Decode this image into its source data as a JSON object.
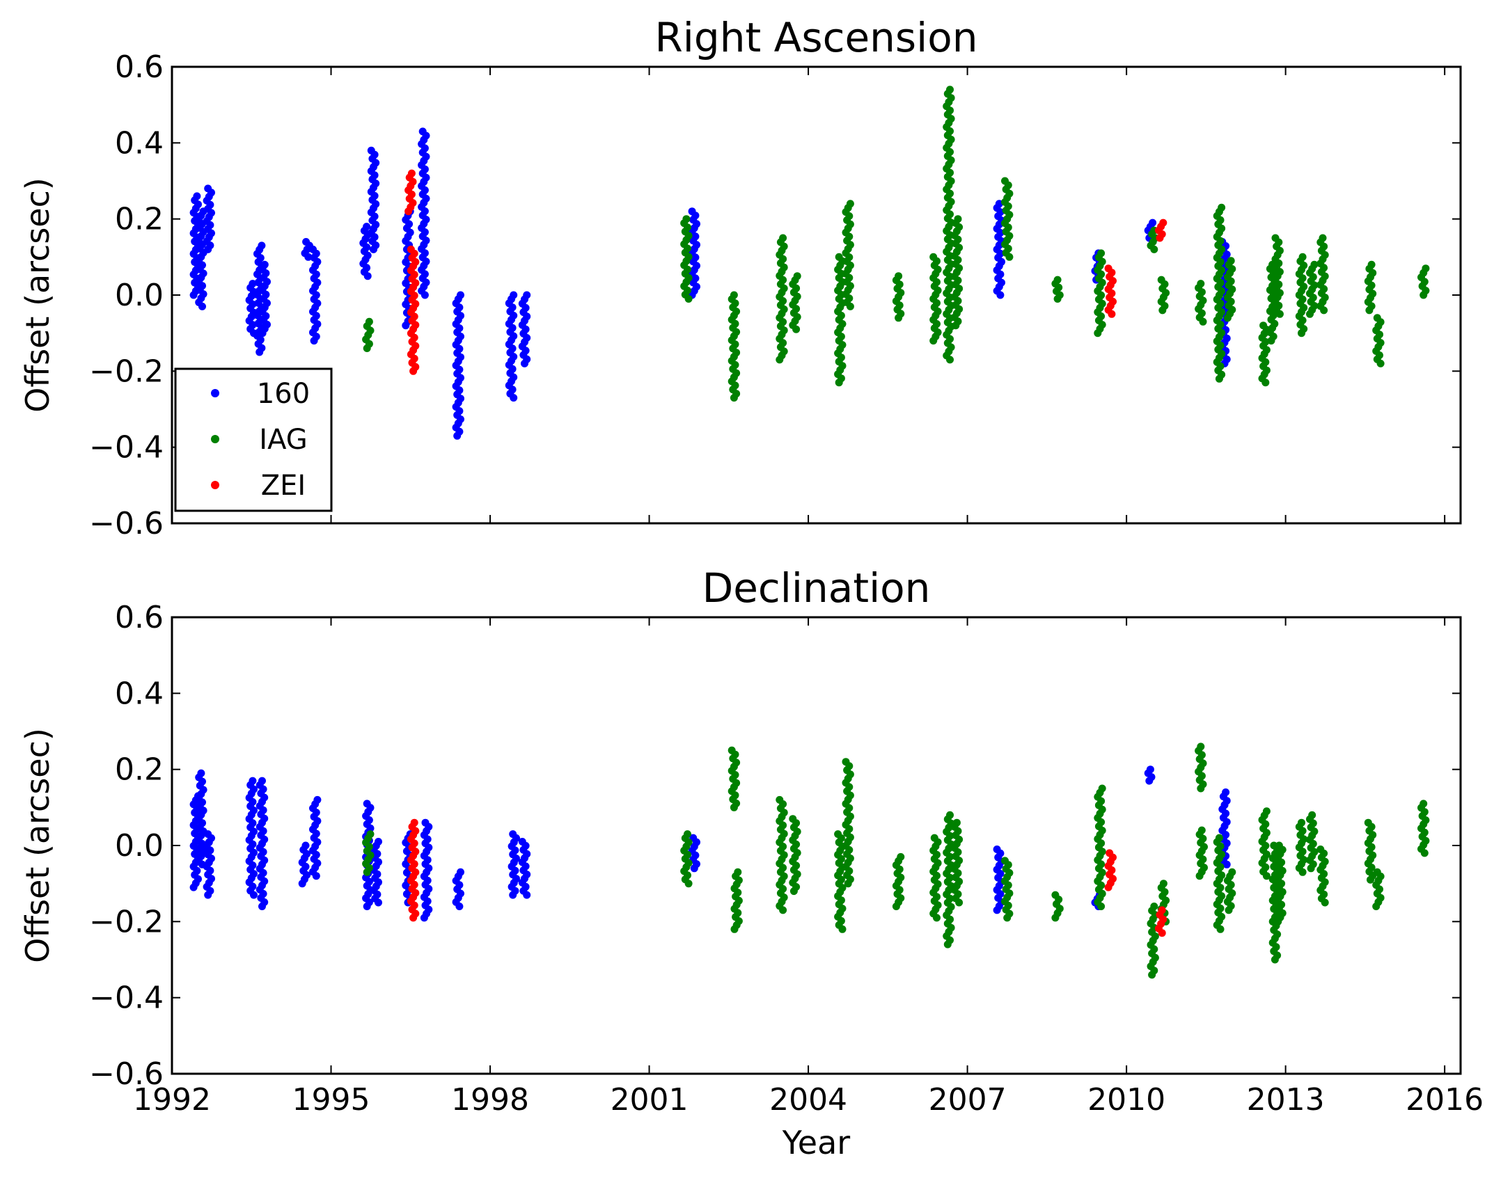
{
  "chart_data": [
    {
      "type": "scatter",
      "title": "Right Ascension",
      "xlabel": "",
      "ylabel": "Offset (arcsec)",
      "xlim": [
        1992.0,
        2016.3
      ],
      "ylim": [
        -0.6,
        0.6
      ],
      "xticks": [
        1992,
        1995,
        1998,
        2001,
        2004,
        2007,
        2010,
        2013,
        2016
      ],
      "yticks": [
        0.6,
        0.4,
        0.2,
        0.0,
        -0.2,
        -0.4,
        -0.6
      ],
      "show_xtick_labels": false,
      "legend": {
        "position": "lower-left",
        "entries": [
          "160",
          "IAG",
          "ZEI"
        ]
      },
      "series": [
        {
          "name": "160",
          "color": "#0000ff",
          "clusters": [
            {
              "x": 1992.45,
              "ymin": 0.0,
              "ymax": 0.26
            },
            {
              "x": 1992.55,
              "ymin": -0.03,
              "ymax": 0.22
            },
            {
              "x": 1992.7,
              "ymin": 0.12,
              "ymax": 0.28
            },
            {
              "x": 1993.5,
              "ymin": -0.1,
              "ymax": 0.03
            },
            {
              "x": 1993.65,
              "ymin": -0.15,
              "ymax": 0.13
            },
            {
              "x": 1993.75,
              "ymin": -0.1,
              "ymax": 0.08
            },
            {
              "x": 1994.55,
              "ymin": 0.1,
              "ymax": 0.14
            },
            {
              "x": 1994.7,
              "ymin": -0.12,
              "ymax": 0.12
            },
            {
              "x": 1995.65,
              "ymin": 0.05,
              "ymax": 0.18
            },
            {
              "x": 1995.8,
              "ymin": 0.12,
              "ymax": 0.38
            },
            {
              "x": 1996.45,
              "ymin": -0.08,
              "ymax": 0.22
            },
            {
              "x": 1996.75,
              "ymin": 0.0,
              "ymax": 0.43
            },
            {
              "x": 1997.4,
              "ymin": -0.37,
              "ymax": 0.0
            },
            {
              "x": 1998.4,
              "ymin": -0.27,
              "ymax": 0.0
            },
            {
              "x": 1998.65,
              "ymin": -0.18,
              "ymax": 0.0
            },
            {
              "x": 2001.85,
              "ymin": 0.0,
              "ymax": 0.22
            },
            {
              "x": 2007.6,
              "ymin": 0.0,
              "ymax": 0.24
            },
            {
              "x": 2009.45,
              "ymin": 0.04,
              "ymax": 0.11
            },
            {
              "x": 2010.45,
              "ymin": 0.14,
              "ymax": 0.19
            },
            {
              "x": 2011.85,
              "ymin": -0.18,
              "ymax": 0.14
            }
          ]
        },
        {
          "name": "IAG",
          "color": "#008000",
          "clusters": [
            {
              "x": 1995.7,
              "ymin": -0.14,
              "ymax": -0.07
            },
            {
              "x": 2001.7,
              "ymin": -0.01,
              "ymax": 0.2
            },
            {
              "x": 2002.6,
              "ymin": -0.27,
              "ymax": 0.0
            },
            {
              "x": 2003.5,
              "ymin": -0.17,
              "ymax": 0.15
            },
            {
              "x": 2003.75,
              "ymin": -0.09,
              "ymax": 0.05
            },
            {
              "x": 2004.6,
              "ymin": -0.23,
              "ymax": 0.1
            },
            {
              "x": 2004.75,
              "ymin": -0.03,
              "ymax": 0.24
            },
            {
              "x": 2005.7,
              "ymin": -0.06,
              "ymax": 0.05
            },
            {
              "x": 2006.4,
              "ymin": -0.12,
              "ymax": 0.1
            },
            {
              "x": 2006.65,
              "ymin": -0.17,
              "ymax": 0.54
            },
            {
              "x": 2006.8,
              "ymin": -0.08,
              "ymax": 0.2
            },
            {
              "x": 2007.75,
              "ymin": 0.1,
              "ymax": 0.3
            },
            {
              "x": 2008.7,
              "ymin": -0.01,
              "ymax": 0.04
            },
            {
              "x": 2009.5,
              "ymin": -0.1,
              "ymax": 0.11
            },
            {
              "x": 2010.5,
              "ymin": 0.12,
              "ymax": 0.17
            },
            {
              "x": 2010.7,
              "ymin": -0.04,
              "ymax": 0.04
            },
            {
              "x": 2011.4,
              "ymin": -0.07,
              "ymax": 0.03
            },
            {
              "x": 2011.75,
              "ymin": -0.22,
              "ymax": 0.23
            },
            {
              "x": 2011.95,
              "ymin": -0.06,
              "ymax": 0.09
            },
            {
              "x": 2012.6,
              "ymin": -0.23,
              "ymax": -0.08
            },
            {
              "x": 2012.75,
              "ymin": -0.12,
              "ymax": 0.08
            },
            {
              "x": 2012.85,
              "ymin": -0.05,
              "ymax": 0.15
            },
            {
              "x": 2013.3,
              "ymin": -0.1,
              "ymax": 0.1
            },
            {
              "x": 2013.5,
              "ymin": -0.05,
              "ymax": 0.08
            },
            {
              "x": 2013.7,
              "ymin": -0.04,
              "ymax": 0.15
            },
            {
              "x": 2014.6,
              "ymin": -0.04,
              "ymax": 0.08
            },
            {
              "x": 2014.75,
              "ymin": -0.18,
              "ymax": -0.06
            },
            {
              "x": 2015.6,
              "ymin": 0.0,
              "ymax": 0.07
            }
          ]
        },
        {
          "name": "ZEI",
          "color": "#ff0000",
          "clusters": [
            {
              "x": 1996.55,
              "ymin": -0.2,
              "ymax": 0.12
            },
            {
              "x": 1996.5,
              "ymin": 0.22,
              "ymax": 0.32
            },
            {
              "x": 2009.7,
              "ymin": -0.05,
              "ymax": 0.07
            },
            {
              "x": 2010.65,
              "ymin": 0.15,
              "ymax": 0.19
            }
          ]
        }
      ]
    },
    {
      "type": "scatter",
      "title": "Declination",
      "xlabel": "Year",
      "ylabel": "Offset (arcsec)",
      "xlim": [
        1992.0,
        2016.3
      ],
      "ylim": [
        -0.6,
        0.6
      ],
      "xticks": [
        1992,
        1995,
        1998,
        2001,
        2004,
        2007,
        2010,
        2013,
        2016
      ],
      "yticks": [
        0.6,
        0.4,
        0.2,
        0.0,
        -0.2,
        -0.4,
        -0.6
      ],
      "show_xtick_labels": true,
      "series": [
        {
          "name": "160",
          "color": "#0000ff",
          "clusters": [
            {
              "x": 1992.45,
              "ymin": -0.11,
              "ymax": 0.13
            },
            {
              "x": 1992.55,
              "ymin": -0.05,
              "ymax": 0.19
            },
            {
              "x": 1992.7,
              "ymin": -0.13,
              "ymax": 0.03
            },
            {
              "x": 1993.5,
              "ymin": -0.13,
              "ymax": 0.17
            },
            {
              "x": 1993.7,
              "ymin": -0.16,
              "ymax": 0.17
            },
            {
              "x": 1994.5,
              "ymin": -0.1,
              "ymax": 0.0
            },
            {
              "x": 1994.7,
              "ymin": -0.08,
              "ymax": 0.12
            },
            {
              "x": 1995.7,
              "ymin": -0.16,
              "ymax": 0.11
            },
            {
              "x": 1995.85,
              "ymin": -0.15,
              "ymax": 0.01
            },
            {
              "x": 1996.45,
              "ymin": -0.15,
              "ymax": 0.03
            },
            {
              "x": 1996.8,
              "ymin": -0.19,
              "ymax": 0.06
            },
            {
              "x": 1997.4,
              "ymin": -0.16,
              "ymax": -0.07
            },
            {
              "x": 1998.45,
              "ymin": -0.13,
              "ymax": 0.03
            },
            {
              "x": 1998.65,
              "ymin": -0.13,
              "ymax": 0.01
            },
            {
              "x": 2001.85,
              "ymin": -0.06,
              "ymax": 0.02
            },
            {
              "x": 2007.6,
              "ymin": -0.17,
              "ymax": -0.01
            },
            {
              "x": 2009.45,
              "ymin": -0.16,
              "ymax": -0.13
            },
            {
              "x": 2010.45,
              "ymin": 0.17,
              "ymax": 0.2
            },
            {
              "x": 2011.85,
              "ymin": -0.05,
              "ymax": 0.14
            }
          ]
        },
        {
          "name": "IAG",
          "color": "#008000",
          "clusters": [
            {
              "x": 1995.7,
              "ymin": -0.07,
              "ymax": 0.03
            },
            {
              "x": 2001.7,
              "ymin": -0.1,
              "ymax": 0.03
            },
            {
              "x": 2002.6,
              "ymin": 0.1,
              "ymax": 0.25
            },
            {
              "x": 2002.65,
              "ymin": -0.22,
              "ymax": -0.07
            },
            {
              "x": 2003.5,
              "ymin": -0.17,
              "ymax": 0.12
            },
            {
              "x": 2003.75,
              "ymin": -0.12,
              "ymax": 0.07
            },
            {
              "x": 2004.6,
              "ymin": -0.22,
              "ymax": 0.03
            },
            {
              "x": 2004.75,
              "ymin": -0.1,
              "ymax": 0.22
            },
            {
              "x": 2005.7,
              "ymin": -0.16,
              "ymax": -0.03
            },
            {
              "x": 2006.4,
              "ymin": -0.19,
              "ymax": 0.02
            },
            {
              "x": 2006.65,
              "ymin": -0.26,
              "ymax": 0.08
            },
            {
              "x": 2006.8,
              "ymin": -0.15,
              "ymax": 0.06
            },
            {
              "x": 2007.75,
              "ymin": -0.19,
              "ymax": -0.04
            },
            {
              "x": 2008.7,
              "ymin": -0.19,
              "ymax": -0.13
            },
            {
              "x": 2009.5,
              "ymin": -0.16,
              "ymax": 0.15
            },
            {
              "x": 2010.5,
              "ymin": -0.34,
              "ymax": -0.16
            },
            {
              "x": 2010.7,
              "ymin": -0.2,
              "ymax": -0.1
            },
            {
              "x": 2011.4,
              "ymin": 0.15,
              "ymax": 0.26
            },
            {
              "x": 2011.42,
              "ymin": -0.08,
              "ymax": 0.04
            },
            {
              "x": 2011.75,
              "ymin": -0.22,
              "ymax": 0.02
            },
            {
              "x": 2011.95,
              "ymin": -0.17,
              "ymax": -0.07
            },
            {
              "x": 2012.6,
              "ymin": -0.08,
              "ymax": 0.09
            },
            {
              "x": 2012.8,
              "ymin": -0.3,
              "ymax": 0.0
            },
            {
              "x": 2012.9,
              "ymin": -0.2,
              "ymax": 0.0
            },
            {
              "x": 2013.3,
              "ymin": -0.07,
              "ymax": 0.06
            },
            {
              "x": 2013.5,
              "ymin": -0.06,
              "ymax": 0.08
            },
            {
              "x": 2013.7,
              "ymin": -0.15,
              "ymax": -0.01
            },
            {
              "x": 2014.6,
              "ymin": -0.09,
              "ymax": 0.06
            },
            {
              "x": 2014.75,
              "ymin": -0.16,
              "ymax": -0.07
            },
            {
              "x": 2015.6,
              "ymin": -0.02,
              "ymax": 0.11
            }
          ]
        },
        {
          "name": "ZEI",
          "color": "#ff0000",
          "clusters": [
            {
              "x": 1996.55,
              "ymin": -0.19,
              "ymax": 0.06
            },
            {
              "x": 2009.7,
              "ymin": -0.11,
              "ymax": -0.02
            },
            {
              "x": 2010.65,
              "ymin": -0.23,
              "ymax": -0.17
            }
          ]
        }
      ]
    }
  ]
}
